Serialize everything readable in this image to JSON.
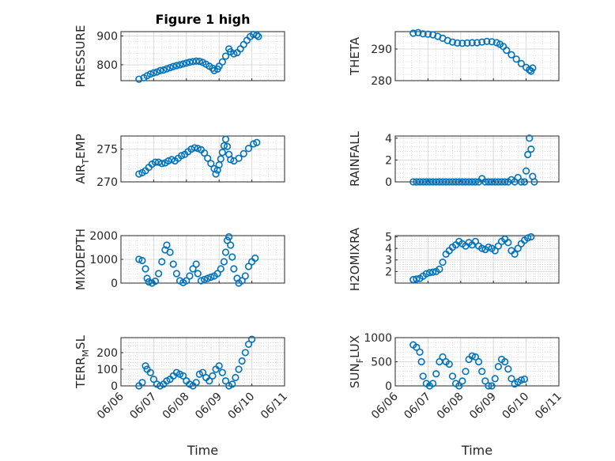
{
  "figure": {
    "title": "Figure 1 high",
    "marker_color": "#0072BD"
  },
  "chart_data": [
    {
      "type": "scatter",
      "panel": "left-1",
      "ylabel_parts": [
        "PRESSURE"
      ],
      "ylim": [
        745,
        915
      ],
      "yticks": [
        800,
        900
      ],
      "ytick_labels": [
        "800",
        "900"
      ],
      "xlim": [
        0,
        5
      ],
      "show_xticklabels": false,
      "points": [
        [
          0.55,
          750
        ],
        [
          0.7,
          755
        ],
        [
          0.8,
          762
        ],
        [
          0.9,
          768
        ],
        [
          1,
          772
        ],
        [
          1.1,
          775
        ],
        [
          1.2,
          780
        ],
        [
          1.3,
          782
        ],
        [
          1.4,
          786
        ],
        [
          1.5,
          790
        ],
        [
          1.6,
          794
        ],
        [
          1.7,
          797
        ],
        [
          1.8,
          800
        ],
        [
          1.9,
          803
        ],
        [
          2,
          806
        ],
        [
          2.1,
          809
        ],
        [
          2.2,
          811
        ],
        [
          2.3,
          813
        ],
        [
          2.4,
          812
        ],
        [
          2.5,
          808
        ],
        [
          2.6,
          802
        ],
        [
          2.7,
          795
        ],
        [
          2.8,
          788
        ],
        [
          2.85,
          780
        ],
        [
          2.95,
          785
        ],
        [
          3,
          795
        ],
        [
          3.1,
          810
        ],
        [
          3.2,
          830
        ],
        [
          3.3,
          855
        ],
        [
          3.35,
          845
        ],
        [
          3.45,
          838
        ],
        [
          3.55,
          842
        ],
        [
          3.65,
          855
        ],
        [
          3.75,
          870
        ],
        [
          3.85,
          885
        ],
        [
          3.95,
          898
        ],
        [
          4.05,
          905
        ],
        [
          4.15,
          903
        ],
        [
          4.2,
          898
        ]
      ]
    },
    {
      "type": "scatter",
      "panel": "right-1",
      "ylabel_parts": [
        "THETA"
      ],
      "ylim": [
        280,
        295.5
      ],
      "yticks": [
        280,
        290
      ],
      "ytick_labels": [
        "280",
        "290"
      ],
      "xlim": [
        0,
        5
      ],
      "show_xticklabels": false,
      "points": [
        [
          0.55,
          295
        ],
        [
          0.7,
          295.2
        ],
        [
          0.85,
          294.8
        ],
        [
          1,
          294.7
        ],
        [
          1.15,
          294.5
        ],
        [
          1.3,
          294
        ],
        [
          1.45,
          293.4
        ],
        [
          1.6,
          292.7
        ],
        [
          1.75,
          292.2
        ],
        [
          1.9,
          291.9
        ],
        [
          2.05,
          291.8
        ],
        [
          2.2,
          291.9
        ],
        [
          2.35,
          292
        ],
        [
          2.5,
          292
        ],
        [
          2.65,
          292.2
        ],
        [
          2.8,
          292.4
        ],
        [
          2.95,
          292.3
        ],
        [
          3.1,
          292
        ],
        [
          3.2,
          291.5
        ],
        [
          3.3,
          290.8
        ],
        [
          3.4,
          289.6
        ],
        [
          3.55,
          288.2
        ],
        [
          3.7,
          286.8
        ],
        [
          3.85,
          285.4
        ],
        [
          4,
          284.2
        ],
        [
          4.1,
          283.4
        ],
        [
          4.15,
          283
        ],
        [
          4.2,
          284
        ]
      ]
    },
    {
      "type": "scatter",
      "panel": "left-2",
      "ylabel_parts": [
        "AIR",
        "T",
        "EMP"
      ],
      "ylim": [
        270,
        277
      ],
      "yticks": [
        270,
        275
      ],
      "ytick_labels": [
        "270",
        "275"
      ],
      "xlim": [
        0,
        5
      ],
      "show_xticklabels": false,
      "points": [
        [
          0.55,
          271.2
        ],
        [
          0.65,
          271.4
        ],
        [
          0.75,
          271.7
        ],
        [
          0.85,
          272.2
        ],
        [
          0.95,
          272.7
        ],
        [
          1.05,
          273
        ],
        [
          1.15,
          273
        ],
        [
          1.25,
          272.8
        ],
        [
          1.35,
          272.9
        ],
        [
          1.45,
          273.2
        ],
        [
          1.55,
          273.4
        ],
        [
          1.65,
          273.2
        ],
        [
          1.75,
          273.6
        ],
        [
          1.85,
          274
        ],
        [
          1.95,
          274.2
        ],
        [
          2.05,
          274.6
        ],
        [
          2.15,
          275
        ],
        [
          2.25,
          275.2
        ],
        [
          2.35,
          275.1
        ],
        [
          2.45,
          274.9
        ],
        [
          2.55,
          274.4
        ],
        [
          2.65,
          273.6
        ],
        [
          2.75,
          272.8
        ],
        [
          2.85,
          272
        ],
        [
          2.9,
          271.2
        ],
        [
          2.95,
          271.8
        ],
        [
          3,
          272.6
        ],
        [
          3.05,
          273.5
        ],
        [
          3.1,
          274.5
        ],
        [
          3.15,
          275.5
        ],
        [
          3.2,
          276.5
        ],
        [
          3.25,
          275.4
        ],
        [
          3.3,
          274.2
        ],
        [
          3.35,
          273.4
        ],
        [
          3.45,
          273.2
        ],
        [
          3.6,
          273.6
        ],
        [
          3.75,
          274.3
        ],
        [
          3.9,
          275.1
        ],
        [
          4.05,
          275.8
        ],
        [
          4.15,
          276
        ]
      ]
    },
    {
      "type": "scatter",
      "panel": "right-2",
      "ylabel_parts": [
        "RAINFALL"
      ],
      "ylim": [
        0,
        4.2
      ],
      "yticks": [
        0,
        2,
        4
      ],
      "ytick_labels": [
        "0",
        "2",
        "4"
      ],
      "xlim": [
        0,
        5
      ],
      "show_xticklabels": false,
      "points": [
        [
          0.55,
          0
        ],
        [
          0.65,
          0
        ],
        [
          0.75,
          0
        ],
        [
          0.85,
          0
        ],
        [
          0.95,
          0
        ],
        [
          1.05,
          0
        ],
        [
          1.15,
          0
        ],
        [
          1.25,
          0
        ],
        [
          1.35,
          0
        ],
        [
          1.45,
          0
        ],
        [
          1.55,
          0
        ],
        [
          1.65,
          0
        ],
        [
          1.75,
          0
        ],
        [
          1.85,
          0
        ],
        [
          1.95,
          0
        ],
        [
          2.05,
          0
        ],
        [
          2.15,
          0
        ],
        [
          2.25,
          0
        ],
        [
          2.35,
          0
        ],
        [
          2.45,
          0
        ],
        [
          2.55,
          0
        ],
        [
          2.65,
          0.3
        ],
        [
          2.75,
          0
        ],
        [
          2.85,
          0
        ],
        [
          2.95,
          0
        ],
        [
          3.05,
          0
        ],
        [
          3.15,
          0
        ],
        [
          3.25,
          0
        ],
        [
          3.35,
          0
        ],
        [
          3.45,
          0
        ],
        [
          3.55,
          0.2
        ],
        [
          3.65,
          0
        ],
        [
          3.75,
          0.4
        ],
        [
          3.85,
          0
        ],
        [
          3.95,
          0
        ],
        [
          4.0,
          1
        ],
        [
          4.05,
          2.5
        ],
        [
          4.1,
          4
        ],
        [
          4.15,
          3
        ],
        [
          4.2,
          0.5
        ],
        [
          4.25,
          0
        ]
      ]
    },
    {
      "type": "scatter",
      "panel": "left-3",
      "ylabel_parts": [
        "MIXDEPTH"
      ],
      "ylim": [
        0,
        2000
      ],
      "yticks": [
        0,
        1000,
        2000
      ],
      "ytick_labels": [
        "0",
        "1000",
        "2000"
      ],
      "xlim": [
        0,
        5
      ],
      "show_xticklabels": false,
      "points": [
        [
          0.55,
          1000
        ],
        [
          0.65,
          950
        ],
        [
          0.75,
          600
        ],
        [
          0.8,
          200
        ],
        [
          0.85,
          50
        ],
        [
          0.95,
          0
        ],
        [
          1.05,
          80
        ],
        [
          1.15,
          400
        ],
        [
          1.25,
          900
        ],
        [
          1.35,
          1400
        ],
        [
          1.4,
          1600
        ],
        [
          1.5,
          1300
        ],
        [
          1.6,
          800
        ],
        [
          1.7,
          400
        ],
        [
          1.8,
          100
        ],
        [
          1.9,
          20
        ],
        [
          2,
          100
        ],
        [
          2.1,
          300
        ],
        [
          2.2,
          600
        ],
        [
          2.3,
          800
        ],
        [
          2.35,
          400
        ],
        [
          2.45,
          100
        ],
        [
          2.55,
          150
        ],
        [
          2.65,
          200
        ],
        [
          2.75,
          250
        ],
        [
          2.85,
          300
        ],
        [
          2.95,
          400
        ],
        [
          3.05,
          600
        ],
        [
          3.15,
          900
        ],
        [
          3.2,
          1300
        ],
        [
          3.25,
          1800
        ],
        [
          3.3,
          1950
        ],
        [
          3.35,
          1600
        ],
        [
          3.4,
          1100
        ],
        [
          3.45,
          600
        ],
        [
          3.55,
          200
        ],
        [
          3.6,
          0
        ],
        [
          3.7,
          100
        ],
        [
          3.8,
          300
        ],
        [
          3.9,
          700
        ],
        [
          4.0,
          900
        ],
        [
          4.1,
          1050
        ]
      ]
    },
    {
      "type": "scatter",
      "panel": "right-3",
      "ylabel_parts": [
        "H2OMIXRA"
      ],
      "ylim": [
        1,
        5.1
      ],
      "yticks": [
        2,
        3,
        4,
        5
      ],
      "ytick_labels": [
        "2",
        "3",
        "4",
        "5"
      ],
      "xlim": [
        0,
        5
      ],
      "show_xticklabels": false,
      "points": [
        [
          0.55,
          1.3
        ],
        [
          0.65,
          1.35
        ],
        [
          0.75,
          1.4
        ],
        [
          0.85,
          1.6
        ],
        [
          0.95,
          1.8
        ],
        [
          1.05,
          1.9
        ],
        [
          1.15,
          1.95
        ],
        [
          1.25,
          2.0
        ],
        [
          1.35,
          2.2
        ],
        [
          1.45,
          2.8
        ],
        [
          1.55,
          3.5
        ],
        [
          1.65,
          3.8
        ],
        [
          1.75,
          4.1
        ],
        [
          1.85,
          4.3
        ],
        [
          1.95,
          4.6
        ],
        [
          2.05,
          4.4
        ],
        [
          2.15,
          4.2
        ],
        [
          2.25,
          4.5
        ],
        [
          2.35,
          4.3
        ],
        [
          2.45,
          4.6
        ],
        [
          2.55,
          4.2
        ],
        [
          2.65,
          4.0
        ],
        [
          2.75,
          3.9
        ],
        [
          2.85,
          4.1
        ],
        [
          2.95,
          4.0
        ],
        [
          3.05,
          3.8
        ],
        [
          3.15,
          4.2
        ],
        [
          3.25,
          4.6
        ],
        [
          3.35,
          4.8
        ],
        [
          3.45,
          4.5
        ],
        [
          3.55,
          3.8
        ],
        [
          3.65,
          3.5
        ],
        [
          3.75,
          4.0
        ],
        [
          3.85,
          4.4
        ],
        [
          3.95,
          4.7
        ],
        [
          4.05,
          4.9
        ],
        [
          4.15,
          5.0
        ]
      ]
    },
    {
      "type": "scatter",
      "panel": "left-4",
      "ylabel_parts": [
        "TERR",
        "M",
        "SL"
      ],
      "ylim": [
        0,
        290
      ],
      "yticks": [
        0,
        100,
        200
      ],
      "ytick_labels": [
        "0",
        "100",
        "200"
      ],
      "xlim": [
        0,
        5
      ],
      "show_xticklabels": true,
      "xticks": [
        0,
        1,
        2,
        3,
        4,
        5
      ],
      "xtick_labels": [
        "06/06",
        "06/07",
        "06/08",
        "06/09",
        "06/10",
        "06/11"
      ],
      "xlabel": "Time",
      "points": [
        [
          0.55,
          0
        ],
        [
          0.65,
          20
        ],
        [
          0.75,
          120
        ],
        [
          0.8,
          100
        ],
        [
          0.9,
          80
        ],
        [
          1.0,
          40
        ],
        [
          1.1,
          10
        ],
        [
          1.2,
          0
        ],
        [
          1.3,
          10
        ],
        [
          1.4,
          30
        ],
        [
          1.5,
          40
        ],
        [
          1.6,
          60
        ],
        [
          1.7,
          80
        ],
        [
          1.8,
          70
        ],
        [
          1.9,
          60
        ],
        [
          2.0,
          30
        ],
        [
          2.1,
          10
        ],
        [
          2.2,
          0
        ],
        [
          2.3,
          20
        ],
        [
          2.4,
          70
        ],
        [
          2.5,
          80
        ],
        [
          2.6,
          50
        ],
        [
          2.7,
          30
        ],
        [
          2.8,
          60
        ],
        [
          2.9,
          100
        ],
        [
          3.0,
          120
        ],
        [
          3.1,
          80
        ],
        [
          3.2,
          30
        ],
        [
          3.3,
          0
        ],
        [
          3.4,
          10
        ],
        [
          3.5,
          50
        ],
        [
          3.6,
          100
        ],
        [
          3.7,
          150
        ],
        [
          3.8,
          200
        ],
        [
          3.9,
          250
        ],
        [
          4.0,
          280
        ]
      ]
    },
    {
      "type": "scatter",
      "panel": "right-4",
      "ylabel_parts": [
        "SUN",
        "F",
        "LUX"
      ],
      "ylim": [
        0,
        1000
      ],
      "yticks": [
        0,
        500,
        1000
      ],
      "ytick_labels": [
        "0",
        "500",
        "1000"
      ],
      "xlim": [
        0,
        5
      ],
      "show_xticklabels": true,
      "xticks": [
        0,
        1,
        2,
        3,
        4,
        5
      ],
      "xtick_labels": [
        "06/06",
        "06/07",
        "06/08",
        "06/09",
        "06/10",
        "06/11"
      ],
      "xlabel": "Time",
      "points": [
        [
          0.55,
          850
        ],
        [
          0.65,
          800
        ],
        [
          0.75,
          700
        ],
        [
          0.8,
          500
        ],
        [
          0.85,
          200
        ],
        [
          0.95,
          50
        ],
        [
          1.05,
          0
        ],
        [
          1.15,
          50
        ],
        [
          1.25,
          250
        ],
        [
          1.35,
          500
        ],
        [
          1.45,
          600
        ],
        [
          1.55,
          500
        ],
        [
          1.65,
          450
        ],
        [
          1.75,
          200
        ],
        [
          1.85,
          50
        ],
        [
          1.95,
          0
        ],
        [
          2.05,
          100
        ],
        [
          2.15,
          300
        ],
        [
          2.25,
          550
        ],
        [
          2.35,
          620
        ],
        [
          2.45,
          600
        ],
        [
          2.55,
          500
        ],
        [
          2.65,
          300
        ],
        [
          2.75,
          100
        ],
        [
          2.85,
          0
        ],
        [
          2.95,
          0
        ],
        [
          3.05,
          150
        ],
        [
          3.15,
          400
        ],
        [
          3.25,
          550
        ],
        [
          3.35,
          500
        ],
        [
          3.45,
          350
        ],
        [
          3.55,
          150
        ],
        [
          3.65,
          40
        ],
        [
          3.75,
          80
        ],
        [
          3.85,
          120
        ],
        [
          3.95,
          140
        ]
      ]
    }
  ]
}
